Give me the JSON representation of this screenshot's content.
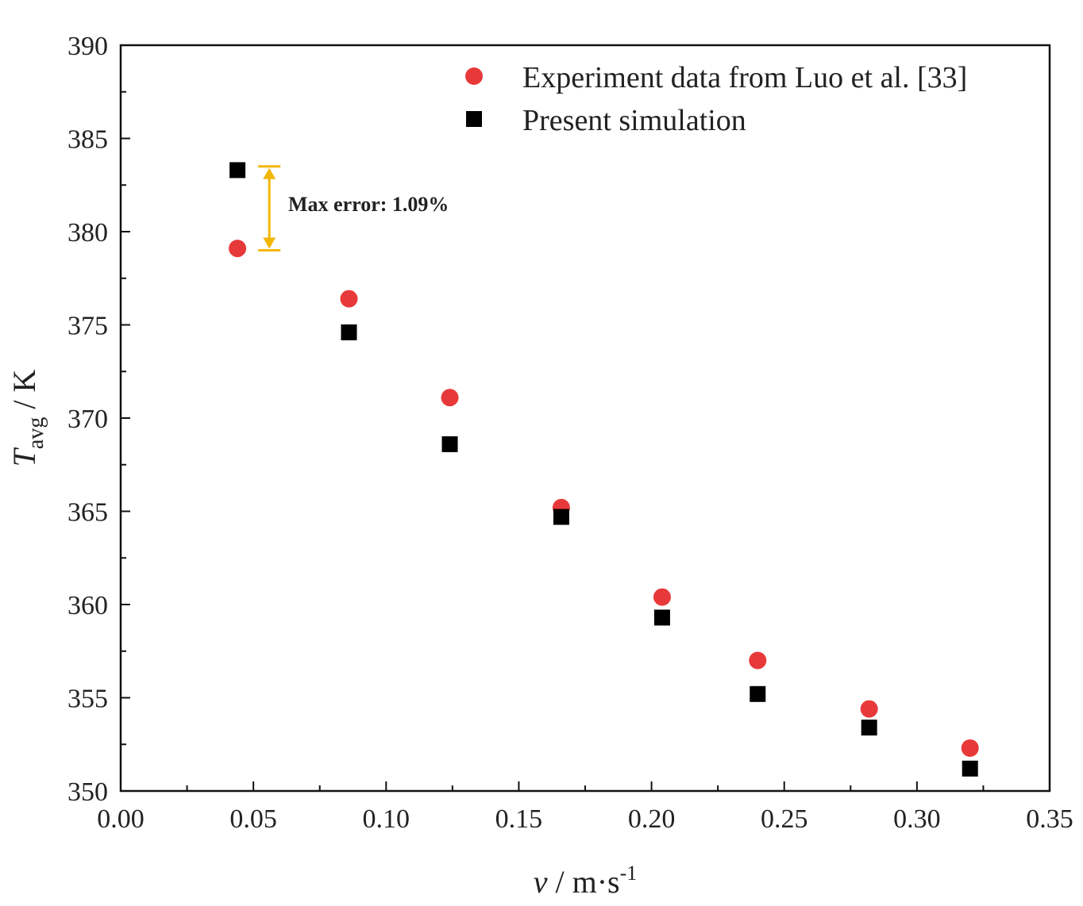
{
  "chart_data": {
    "type": "scatter",
    "title": "",
    "xlabel": "v / m·s⁻¹",
    "xlabel_parts": {
      "var": "v",
      "unit": " / m·s",
      "sup": "-1"
    },
    "ylabel": "T_avg / K",
    "ylabel_parts": {
      "var": "T",
      "sub": "avg",
      "unit": " / K"
    },
    "xlim": [
      0.0,
      0.35
    ],
    "ylim": [
      350,
      390
    ],
    "xticks": [
      0.0,
      0.05,
      0.1,
      0.15,
      0.2,
      0.25,
      0.3,
      0.35
    ],
    "xtick_labels": [
      "0.00",
      "0.05",
      "0.10",
      "0.15",
      "0.20",
      "0.25",
      "0.30",
      "0.35"
    ],
    "yticks": [
      350,
      355,
      360,
      365,
      370,
      375,
      380,
      385,
      390
    ],
    "ytick_labels": [
      "350",
      "355",
      "360",
      "365",
      "370",
      "375",
      "380",
      "385",
      "390"
    ],
    "grid": false,
    "legend_position": "top-right",
    "series": [
      {
        "name": "Experiment data from Luo et al. [33]",
        "marker": "circle",
        "color": "#e8393a",
        "x": [
          0.044,
          0.086,
          0.124,
          0.166,
          0.204,
          0.24,
          0.282,
          0.32
        ],
        "y": [
          379.1,
          376.4,
          371.1,
          365.2,
          360.4,
          357.0,
          354.4,
          352.3
        ]
      },
      {
        "name": "Present simulation",
        "marker": "square",
        "color": "#000000",
        "x": [
          0.044,
          0.086,
          0.124,
          0.166,
          0.204,
          0.24,
          0.282,
          0.32
        ],
        "y": [
          383.3,
          374.6,
          368.6,
          364.7,
          359.3,
          355.2,
          353.4,
          351.2
        ]
      }
    ],
    "annotation": {
      "text": "Max error: 1.09%",
      "color": "#f2b705",
      "x": 0.056,
      "y_from": 383.5,
      "y_to": 379.0
    }
  }
}
